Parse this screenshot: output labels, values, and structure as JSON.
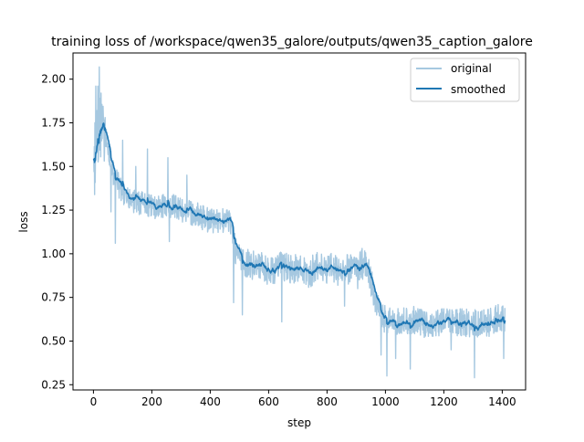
{
  "chart_data": {
    "type": "line",
    "title": "training loss of /workspace/qwen35_galore/outputs/qwen35_caption_galore",
    "xlabel": "step",
    "ylabel": "loss",
    "xlim": [
      -70,
      1480
    ],
    "ylim": [
      0.22,
      2.15
    ],
    "xticks": [
      0,
      200,
      400,
      600,
      800,
      1000,
      1200,
      1400
    ],
    "xtick_labels": [
      "0",
      "200",
      "400",
      "600",
      "800",
      "1000",
      "1200",
      "1400"
    ],
    "yticks": [
      0.25,
      0.5,
      0.75,
      1.0,
      1.25,
      1.5,
      1.75,
      2.0
    ],
    "ytick_labels": [
      "0.25",
      "0.50",
      "0.75",
      "1.00",
      "1.25",
      "1.50",
      "1.75",
      "2.00"
    ],
    "grid": false,
    "legend": "upper right",
    "colors": {
      "original": "#a6c8e0",
      "smoothed": "#1f77b4"
    },
    "smoothed_anchors": [
      [
        0,
        1.46
      ],
      [
        10,
        1.55
      ],
      [
        20,
        1.66
      ],
      [
        30,
        1.7
      ],
      [
        40,
        1.68
      ],
      [
        50,
        1.62
      ],
      [
        60,
        1.52
      ],
      [
        70,
        1.44
      ],
      [
        80,
        1.42
      ],
      [
        90,
        1.38
      ],
      [
        100,
        1.34
      ],
      [
        110,
        1.32
      ],
      [
        120,
        1.31
      ],
      [
        140,
        1.3
      ],
      [
        160,
        1.29
      ],
      [
        180,
        1.28
      ],
      [
        200,
        1.27
      ],
      [
        220,
        1.26
      ],
      [
        240,
        1.27
      ],
      [
        260,
        1.28
      ],
      [
        280,
        1.27
      ],
      [
        300,
        1.25
      ],
      [
        320,
        1.24
      ],
      [
        340,
        1.23
      ],
      [
        360,
        1.22
      ],
      [
        380,
        1.2
      ],
      [
        400,
        1.19
      ],
      [
        420,
        1.19
      ],
      [
        440,
        1.19
      ],
      [
        460,
        1.2
      ],
      [
        470,
        1.18
      ],
      [
        480,
        1.06
      ],
      [
        490,
        1.0
      ],
      [
        500,
        0.97
      ],
      [
        520,
        0.95
      ],
      [
        540,
        0.93
      ],
      [
        560,
        0.95
      ],
      [
        580,
        0.92
      ],
      [
        600,
        0.89
      ],
      [
        620,
        0.91
      ],
      [
        640,
        0.93
      ],
      [
        660,
        0.92
      ],
      [
        680,
        0.91
      ],
      [
        700,
        0.92
      ],
      [
        720,
        0.9
      ],
      [
        740,
        0.88
      ],
      [
        760,
        0.93
      ],
      [
        780,
        0.92
      ],
      [
        800,
        0.91
      ],
      [
        820,
        0.92
      ],
      [
        840,
        0.9
      ],
      [
        860,
        0.91
      ],
      [
        880,
        0.91
      ],
      [
        900,
        0.93
      ],
      [
        930,
        0.94
      ],
      [
        940,
        0.93
      ],
      [
        960,
        0.76
      ],
      [
        980,
        0.66
      ],
      [
        1000,
        0.62
      ],
      [
        1050,
        0.61
      ],
      [
        1100,
        0.62
      ],
      [
        1150,
        0.59
      ],
      [
        1200,
        0.61
      ],
      [
        1250,
        0.61
      ],
      [
        1300,
        0.6
      ],
      [
        1350,
        0.6
      ],
      [
        1390,
        0.64
      ],
      [
        1410,
        0.61
      ]
    ],
    "original_spikes": [
      [
        2,
        1.47
      ],
      [
        5,
        1.75
      ],
      [
        8,
        1.96
      ],
      [
        12,
        1.82
      ],
      [
        15,
        1.96
      ],
      [
        18,
        1.62
      ],
      [
        20,
        2.07
      ],
      [
        23,
        1.89
      ],
      [
        26,
        1.92
      ],
      [
        30,
        1.66
      ],
      [
        40,
        1.78
      ],
      [
        60,
        1.24
      ],
      [
        75,
        1.06
      ],
      [
        100,
        1.65
      ],
      [
        145,
        1.5
      ],
      [
        185,
        1.6
      ],
      [
        255,
        1.55
      ],
      [
        260,
        1.07
      ],
      [
        320,
        1.45
      ],
      [
        480,
        0.72
      ],
      [
        510,
        0.65
      ],
      [
        550,
        0.9
      ],
      [
        610,
        0.88
      ],
      [
        645,
        0.61
      ],
      [
        860,
        0.7
      ],
      [
        905,
        0.8
      ],
      [
        920,
        1.03
      ],
      [
        985,
        0.42
      ],
      [
        1005,
        0.3
      ],
      [
        1035,
        0.4
      ],
      [
        1085,
        0.34
      ],
      [
        1225,
        0.45
      ],
      [
        1305,
        0.29
      ],
      [
        1405,
        0.4
      ]
    ],
    "series": [
      {
        "name": "original"
      },
      {
        "name": "smoothed"
      }
    ]
  }
}
